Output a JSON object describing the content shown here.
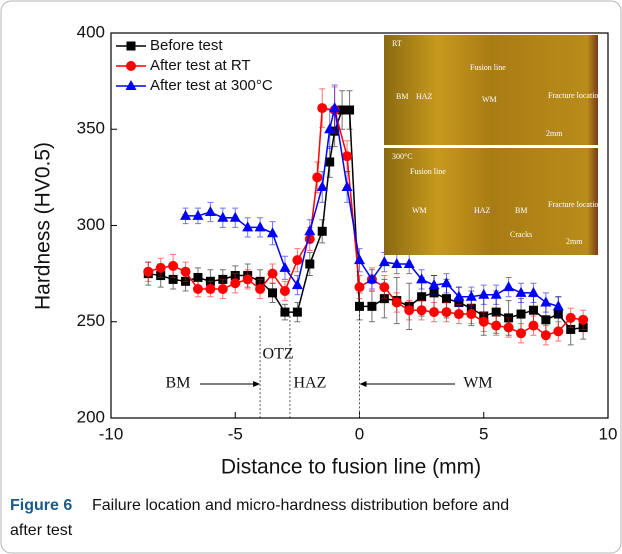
{
  "chart_data": {
    "type": "line",
    "x_label": "Distance to fusion line (mm)",
    "y_label": "Hardness (HV0.5)",
    "xlim": [
      -10,
      10
    ],
    "xticks": [
      -10,
      -5,
      0,
      5,
      10
    ],
    "ylim": [
      200,
      400
    ],
    "yticks": [
      200,
      250,
      300,
      350,
      400
    ],
    "legend": "upper-left",
    "series": [
      {
        "name": "Before test",
        "color": "#000000",
        "marker": "square",
        "x": [
          -8.5,
          -8.0,
          -7.5,
          -7.0,
          -6.5,
          -6.0,
          -5.5,
          -5.0,
          -4.5,
          -4.0,
          -3.5,
          -3.0,
          -2.5,
          -2.0,
          -1.5,
          -1.2,
          -1.0,
          -0.7,
          -0.4,
          0,
          0.5,
          1.0,
          1.5,
          2.0,
          2.5,
          3.0,
          3.5,
          4.0,
          4.5,
          5.0,
          5.5,
          6.0,
          6.5,
          7.0,
          7.5,
          8.0,
          8.5,
          9.0
        ],
        "values": [
          275,
          274,
          272,
          271,
          273,
          271,
          272,
          274,
          274,
          271,
          265,
          255,
          255,
          280,
          297,
          333,
          349,
          360,
          360,
          258,
          258,
          262,
          261,
          258,
          263,
          265,
          262,
          260,
          257,
          253,
          255,
          252,
          254,
          256,
          251,
          254,
          246,
          247
        ],
        "errors": [
          6,
          6,
          5,
          5,
          5,
          6,
          5,
          5,
          6,
          6,
          5,
          4,
          5,
          6,
          6,
          8,
          8,
          10,
          10,
          7,
          8,
          10,
          12,
          12,
          10,
          9,
          10,
          8,
          9,
          10,
          11,
          9,
          8,
          7,
          8,
          9,
          8,
          6
        ]
      },
      {
        "name": "After test at RT",
        "color": "#ff0000",
        "marker": "circle",
        "x": [
          -8.5,
          -8.0,
          -7.5,
          -7.0,
          -6.5,
          -6.0,
          -5.5,
          -5.0,
          -4.5,
          -4.0,
          -3.5,
          -3.0,
          -2.5,
          -2.0,
          -1.7,
          -1.5,
          -1.0,
          -0.5,
          0,
          0.5,
          1.0,
          1.5,
          2.0,
          2.5,
          3.0,
          3.5,
          4.0,
          4.5,
          5.0,
          5.5,
          6.0,
          6.5,
          7.0,
          7.5,
          8.0,
          8.5,
          9.0
        ],
        "values": [
          276,
          278,
          279,
          276,
          267,
          267,
          267,
          270,
          272,
          267,
          275,
          266,
          282,
          293,
          325,
          361,
          360,
          336,
          268,
          272,
          268,
          260,
          256,
          256,
          255,
          255,
          254,
          254,
          250,
          248,
          247,
          244,
          248,
          243,
          245,
          252,
          251
        ],
        "errors": [
          5,
          5,
          6,
          5,
          4,
          4,
          5,
          5,
          5,
          5,
          5,
          5,
          6,
          6,
          8,
          10,
          12,
          8,
          6,
          6,
          6,
          5,
          5,
          5,
          5,
          5,
          5,
          5,
          5,
          5,
          5,
          5,
          5,
          5,
          5,
          5,
          5
        ]
      },
      {
        "name": "After test at 300°C",
        "color": "#0000ff",
        "marker": "triangle",
        "x": [
          -7.0,
          -6.5,
          -6.0,
          -5.5,
          -5.0,
          -4.5,
          -4.0,
          -3.5,
          -3.0,
          -2.5,
          -2.0,
          -1.5,
          -1.2,
          -1.0,
          -0.5,
          0,
          0.5,
          1.0,
          1.5,
          2.0,
          2.5,
          3.0,
          3.5,
          4.0,
          4.5,
          5.0,
          5.5,
          6.0,
          6.5,
          7.0,
          7.5,
          8.0
        ],
        "values": [
          305,
          305,
          307,
          304,
          304,
          299,
          299,
          296,
          278,
          269,
          297,
          320,
          350,
          361,
          320,
          282,
          272,
          281,
          280,
          280,
          272,
          269,
          270,
          263,
          263,
          264,
          264,
          268,
          265,
          265,
          260,
          258
        ],
        "errors": [
          4,
          4,
          5,
          5,
          5,
          5,
          5,
          6,
          6,
          5,
          6,
          8,
          10,
          12,
          8,
          6,
          5,
          5,
          5,
          5,
          5,
          5,
          5,
          5,
          5,
          5,
          5,
          5,
          5,
          5,
          5,
          5
        ]
      }
    ],
    "zone_lines": [
      -4,
      -2.8,
      0
    ],
    "annotations": [
      "OTZ",
      "BM",
      "HAZ",
      "WM"
    ],
    "insets": [
      {
        "labels": [
          "RT",
          "Fusion line",
          "BM",
          "HAZ",
          "WM",
          "Fracture location",
          "2mm"
        ]
      },
      {
        "labels": [
          "300°C",
          "Fusion line",
          "WM",
          "HAZ",
          "BM",
          "Fracture location",
          "Cracks",
          "2mm"
        ]
      }
    ]
  },
  "caption": {
    "label": "Figure 6",
    "text": "Failure location and micro-hardness distribution before and",
    "text2": "after test"
  }
}
